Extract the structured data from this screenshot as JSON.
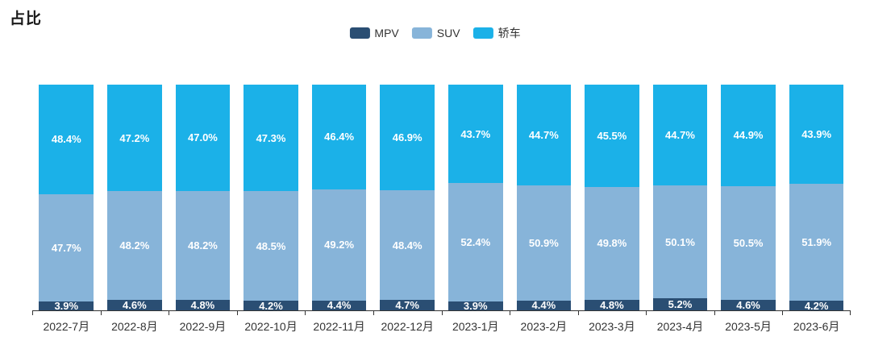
{
  "title": "占比",
  "colors": {
    "mpv": "#2a4e73",
    "suv": "#87b4d9",
    "sedan": "#1bb1e8",
    "axis": "#333333",
    "value_label": "#ffffff",
    "background": "#ffffff"
  },
  "legend": {
    "items": [
      {
        "label": "MPV",
        "color": "#2a4e73"
      },
      {
        "label": "SUV",
        "color": "#87b4d9"
      },
      {
        "label": "轿车",
        "color": "#1bb1e8"
      }
    ]
  },
  "chart_data": {
    "type": "bar",
    "stacked": true,
    "percent_stack": true,
    "title": "占比",
    "xlabel": "",
    "ylabel": "",
    "ylim": [
      0,
      100
    ],
    "grid": false,
    "legend_position": "top-center",
    "value_label_format": "{value}%",
    "categories": [
      "2022-7月",
      "2022-8月",
      "2022-9月",
      "2022-10月",
      "2022-11月",
      "2022-12月",
      "2023-1月",
      "2023-2月",
      "2023-3月",
      "2023-4月",
      "2023-5月",
      "2023-6月"
    ],
    "series": [
      {
        "name": "MPV",
        "color": "#2a4e73",
        "values": [
          3.9,
          4.6,
          4.8,
          4.2,
          4.4,
          4.7,
          3.9,
          4.4,
          4.8,
          5.2,
          4.6,
          4.2
        ]
      },
      {
        "name": "SUV",
        "color": "#87b4d9",
        "values": [
          47.7,
          48.2,
          48.2,
          48.5,
          49.2,
          48.4,
          52.4,
          50.9,
          49.8,
          50.1,
          50.5,
          51.9
        ]
      },
      {
        "name": "轿车",
        "color": "#1bb1e8",
        "values": [
          48.4,
          47.2,
          47.0,
          47.3,
          46.4,
          46.9,
          43.7,
          44.7,
          45.5,
          44.7,
          44.9,
          43.9
        ]
      }
    ]
  }
}
